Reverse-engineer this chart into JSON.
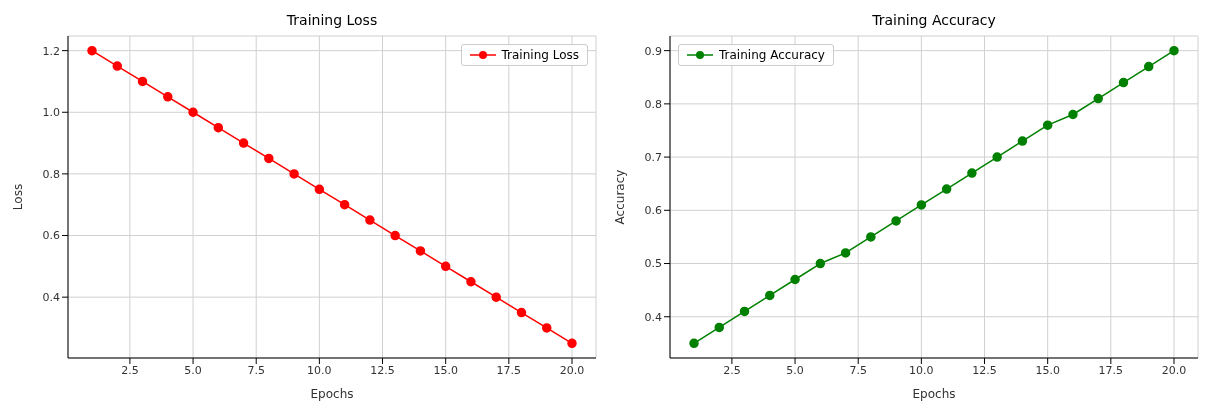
{
  "chart_data": [
    {
      "type": "line",
      "title": "Training Loss",
      "xlabel": "Epochs",
      "ylabel": "Loss",
      "x": [
        1,
        2,
        3,
        4,
        5,
        6,
        7,
        8,
        9,
        10,
        11,
        12,
        13,
        14,
        15,
        16,
        17,
        18,
        19,
        20
      ],
      "series": [
        {
          "name": "Training Loss",
          "color": "#ff0000",
          "values": [
            1.2,
            1.15,
            1.1,
            1.05,
            1.0,
            0.95,
            0.9,
            0.85,
            0.8,
            0.75,
            0.7,
            0.65,
            0.6,
            0.55,
            0.5,
            0.45,
            0.4,
            0.35,
            0.3,
            0.25
          ]
        }
      ],
      "xlim": [
        0.05,
        20.95
      ],
      "xticks": [
        {
          "value": 2.5,
          "label": "2.5"
        },
        {
          "value": 5,
          "label": "5.0"
        },
        {
          "value": 7.5,
          "label": "7.5"
        },
        {
          "value": 10,
          "label": "10.0"
        },
        {
          "value": 12.5,
          "label": "12.5"
        },
        {
          "value": 15,
          "label": "15.0"
        },
        {
          "value": 17.5,
          "label": "17.5"
        },
        {
          "value": 20,
          "label": "20.0"
        }
      ],
      "ylim": [
        0.2025,
        1.2475
      ],
      "yticks": [
        {
          "value": 0.4,
          "label": "0.4"
        },
        {
          "value": 0.6,
          "label": "0.6"
        },
        {
          "value": 0.8,
          "label": "0.8"
        },
        {
          "value": 1.0,
          "label": "1.0"
        },
        {
          "value": 1.2,
          "label": "1.2"
        }
      ],
      "grid": true,
      "legend": "top right",
      "marker": "circle",
      "line_style": "solid"
    },
    {
      "type": "line",
      "title": "Training Accuracy",
      "xlabel": "Epochs",
      "ylabel": "Accuracy",
      "x": [
        1,
        2,
        3,
        4,
        5,
        6,
        7,
        8,
        9,
        10,
        11,
        12,
        13,
        14,
        15,
        16,
        17,
        18,
        19,
        20
      ],
      "series": [
        {
          "name": "Training Accuracy",
          "color": "#008000",
          "values": [
            0.35,
            0.38,
            0.41,
            0.44,
            0.47,
            0.5,
            0.52,
            0.55,
            0.58,
            0.61,
            0.64,
            0.67,
            0.7,
            0.73,
            0.76,
            0.78,
            0.81,
            0.84,
            0.87,
            0.9
          ]
        }
      ],
      "xlim": [
        0.05,
        20.95
      ],
      "xticks": [
        {
          "value": 2.5,
          "label": "2.5"
        },
        {
          "value": 5,
          "label": "5.0"
        },
        {
          "value": 7.5,
          "label": "7.5"
        },
        {
          "value": 10,
          "label": "10.0"
        },
        {
          "value": 12.5,
          "label": "12.5"
        },
        {
          "value": 15,
          "label": "15.0"
        },
        {
          "value": 17.5,
          "label": "17.5"
        },
        {
          "value": 20,
          "label": "20.0"
        }
      ],
      "ylim": [
        0.3225,
        0.9275
      ],
      "yticks": [
        0.4,
        0.5,
        0.6,
        0.7,
        0.8,
        0.9
      ],
      "grid": true,
      "legend": "top left",
      "marker": "circle",
      "line_style": "solid"
    }
  ]
}
